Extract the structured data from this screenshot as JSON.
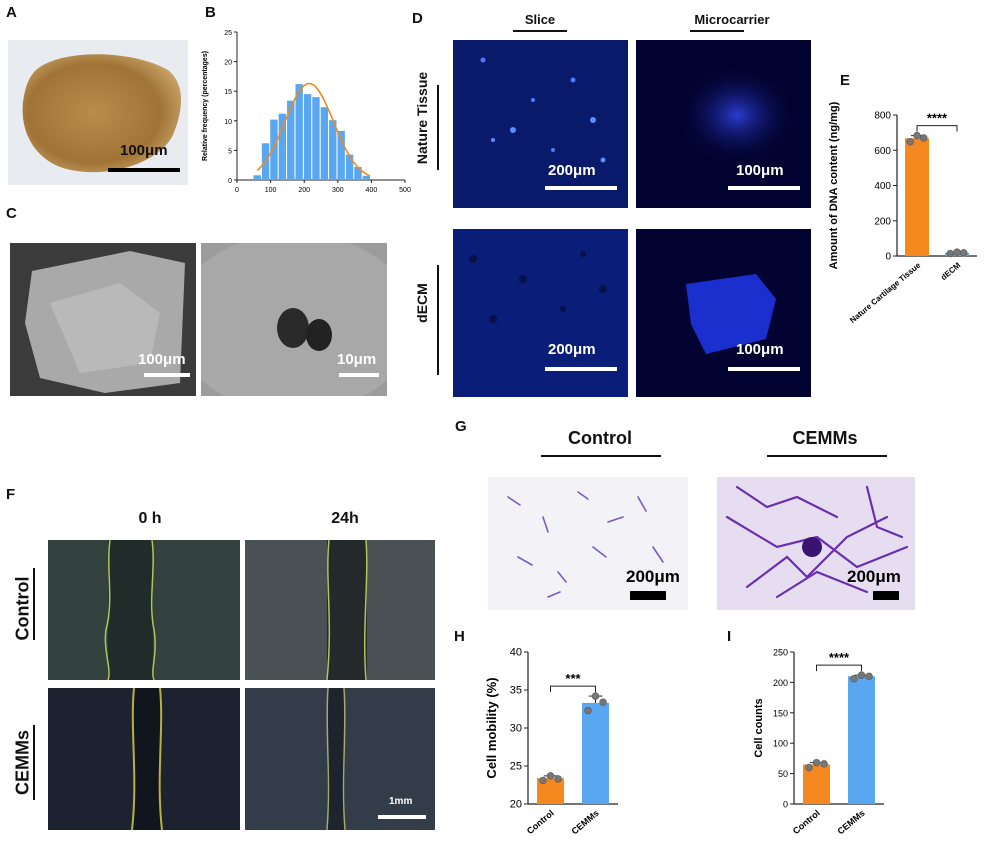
{
  "panels": {
    "A": {
      "label": "A",
      "scale": "100μm"
    },
    "B": {
      "label": "B"
    },
    "C": {
      "label": "C",
      "scale_left": "100μm",
      "scale_right": "10μm"
    },
    "D": {
      "label": "D",
      "col_slice": "Slice",
      "col_micro": "Microcarrier",
      "row_nature": "Nature Tissue",
      "row_decm": "dECM",
      "scale_200a": "200μm",
      "scale_100a": "100μm",
      "scale_200b": "200μm",
      "scale_100b": "100μm"
    },
    "E": {
      "label": "E"
    },
    "F": {
      "label": "F",
      "col_0h": "0 h",
      "col_24h": "24h",
      "row_control": "Control",
      "row_cemms": "CEMMs",
      "scale": "1mm"
    },
    "G": {
      "label": "G",
      "col_control": "Control",
      "col_cemms": "CEMMs",
      "scale_left": "200μm",
      "scale_right": "200μm"
    },
    "H": {
      "label": "H"
    },
    "I": {
      "label": "I"
    }
  },
  "colors": {
    "orange": "#f5891f",
    "blue": "#58a7f0",
    "fit": "#f08a1e"
  },
  "chart_data": [
    {
      "id": "B",
      "type": "bar",
      "xlabel": "",
      "ylabel": "Relative frequency (percentages)",
      "x": [
        60,
        85,
        110,
        135,
        160,
        185,
        210,
        235,
        260,
        285,
        310,
        335,
        360,
        385
      ],
      "values": [
        0.8,
        6.2,
        10.2,
        11.2,
        13.4,
        16.2,
        14.5,
        14.0,
        12.3,
        10.1,
        8.3,
        4.3,
        2.2,
        0.7
      ],
      "fit_curve": true,
      "xlim": [
        0,
        500
      ],
      "ylim": [
        0,
        25
      ],
      "xticks": [
        0,
        100,
        200,
        300,
        400,
        500
      ],
      "yticks": [
        0,
        5,
        10,
        15,
        20,
        25
      ]
    },
    {
      "id": "E",
      "type": "bar",
      "categories": [
        "Nature Cartilage Tissue",
        "dECM"
      ],
      "values": [
        668,
        18
      ],
      "points": [
        [
          648,
          683,
          670
        ],
        [
          14,
          22,
          18
        ]
      ],
      "ylabel": "Amount of DNA content (ng/mg)",
      "ylim": [
        0,
        800
      ],
      "yticks": [
        0,
        200,
        400,
        600,
        800
      ],
      "significance": "****"
    },
    {
      "id": "H",
      "type": "bar",
      "categories": [
        "Control",
        "CEMMs"
      ],
      "values": [
        23.4,
        33.3
      ],
      "points": [
        [
          23.1,
          23.7,
          23.3
        ],
        [
          32.3,
          34.2,
          33.4
        ]
      ],
      "ylabel": "Cell mobility (%)",
      "ylim": [
        20,
        40
      ],
      "yticks": [
        20,
        25,
        30,
        35,
        40
      ],
      "significance": "***"
    },
    {
      "id": "I",
      "type": "bar",
      "categories": [
        "Control",
        "CEMMs"
      ],
      "values": [
        65,
        210
      ],
      "points": [
        [
          60,
          68,
          66
        ],
        [
          206,
          212,
          210
        ]
      ],
      "ylabel": "Cell counts",
      "ylim": [
        0,
        250
      ],
      "yticks": [
        0,
        50,
        100,
        150,
        200,
        250
      ],
      "significance": "****"
    }
  ]
}
